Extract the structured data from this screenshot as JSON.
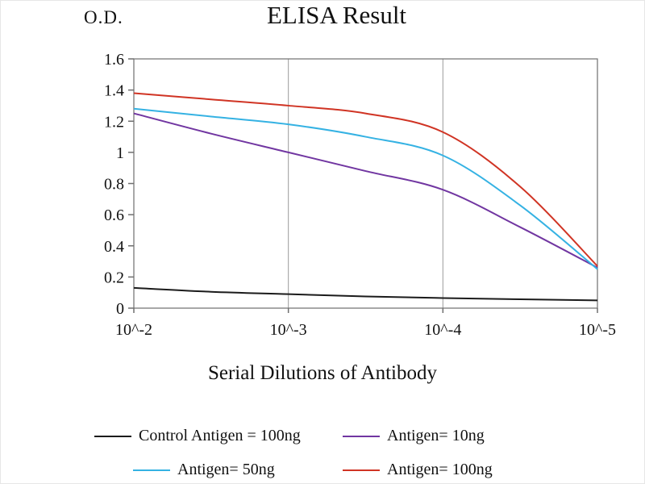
{
  "chart_data": {
    "type": "line",
    "title": "ELISA Result",
    "xlabel": "Serial Dilutions of Antibody",
    "ylabel": "O.D.",
    "x_tick_labels": [
      "10^-2",
      "10^-3",
      "10^-4",
      "10^-5"
    ],
    "x_tick_log": [
      2,
      3,
      4,
      5
    ],
    "y_tick_labels": [
      "0",
      "0.2",
      "0.4",
      "0.6",
      "0.8",
      "1",
      "1.2",
      "1.4",
      "1.6"
    ],
    "y_tick_values": [
      0,
      0.2,
      0.4,
      0.6,
      0.8,
      1,
      1.2,
      1.4,
      1.6
    ],
    "ylim": [
      0,
      1.6
    ],
    "grid": "vertical-only",
    "legend_position": "bottom",
    "grid_color": "#9b9b9b",
    "axis_color": "#6f6f6f",
    "text_color": "#111111",
    "x_samples_log": [
      2,
      2.5,
      3,
      3.5,
      4,
      4.5,
      5
    ],
    "series": [
      {
        "name": "Control Antigen = 100ng",
        "color": "#1b1b1b",
        "values": [
          0.13,
          0.105,
          0.09,
          0.075,
          0.065,
          0.057,
          0.05
        ]
      },
      {
        "name": "Antigen= 10ng",
        "color": "#7136a1",
        "values": [
          1.25,
          1.12,
          1.0,
          0.88,
          0.76,
          0.52,
          0.26
        ]
      },
      {
        "name": "Antigen= 50ng",
        "color": "#35b2e3",
        "values": [
          1.28,
          1.23,
          1.18,
          1.1,
          0.98,
          0.66,
          0.25
        ]
      },
      {
        "name": "Antigen= 100ng",
        "color": "#d03424",
        "values": [
          1.38,
          1.34,
          1.3,
          1.25,
          1.13,
          0.78,
          0.27
        ]
      }
    ]
  }
}
